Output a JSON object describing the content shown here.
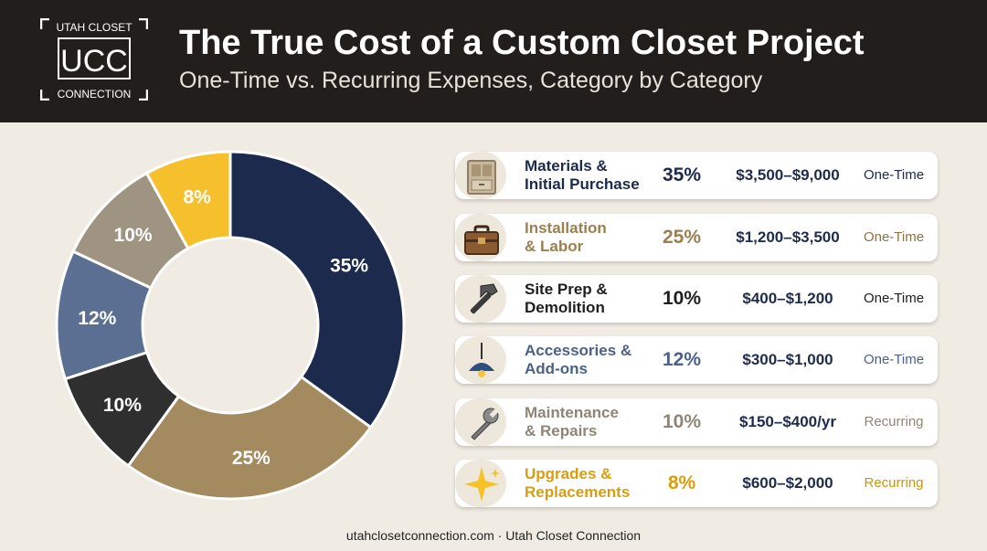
{
  "header": {
    "title": "The True Cost of a Custom Closet Project",
    "subtitle": "One-Time vs. Recurring Expenses, Category by Category"
  },
  "logo": {
    "top": "UTAH CLOSET",
    "mark": "UCC",
    "bottom": "CONNECTION"
  },
  "chart_data": {
    "type": "pie",
    "categories": [
      "Materials & Initial Purchase",
      "Installation & Labor",
      "Site Prep & Demolition",
      "Accessories & Add-ons",
      "Maintenance & Repairs",
      "Upgrades & Replacements"
    ],
    "values": [
      35,
      25,
      10,
      12,
      10,
      8
    ],
    "labels": [
      "35%",
      "25%",
      "10%",
      "12%",
      "10%",
      "8%"
    ],
    "colors": [
      "#1b2a4d",
      "#a48a5f",
      "#2f2f2f",
      "#5a6f91",
      "#9f9382",
      "#f6bf2c"
    ]
  },
  "rows": [
    {
      "line1": "Materials &",
      "line2": "Initial Purchase",
      "pct": "35%",
      "range": "$3,500–$9,000",
      "type": "One-Time",
      "label_color": "#1b2a4d",
      "pct_color": "#1b2a4d",
      "type_color": "#1b2a4d",
      "icon": "cabinet-icon"
    },
    {
      "line1": "Installation",
      "line2": "& Labor",
      "pct": "25%",
      "range": "$1,200–$3,500",
      "type": "One-Time",
      "label_color": "#9a7f50",
      "pct_color": "#9a7f50",
      "type_color": "#8a7248",
      "icon": "toolbox-icon"
    },
    {
      "line1": "Site Prep &",
      "line2": "Demolition",
      "pct": "10%",
      "range": "$400–$1,200",
      "type": "One-Time",
      "label_color": "#1e1e1e",
      "pct_color": "#1e1e1e",
      "type_color": "#1e1e1e",
      "icon": "hammer-icon"
    },
    {
      "line1": "Accessories &",
      "line2": "Add-ons",
      "pct": "12%",
      "range": "$300–$1,000",
      "type": "One-Time",
      "label_color": "#4a6188",
      "pct_color": "#4a6188",
      "type_color": "#4a6188",
      "icon": "lamp-icon"
    },
    {
      "line1": "Maintenance",
      "line2": "& Repairs",
      "pct": "10%",
      "range": "$150–$400/yr",
      "type": "Recurring",
      "label_color": "#8f8577",
      "pct_color": "#8f8577",
      "type_color": "#8f8577",
      "icon": "wrench-icon"
    },
    {
      "line1": "Upgrades &",
      "line2": "Replacements",
      "pct": "8%",
      "range": "$600–$2,000",
      "type": "Recurring",
      "label_color": "#d89e0c",
      "pct_color": "#d89e0c",
      "type_color": "#c9950f",
      "icon": "sparkle-icon"
    }
  ],
  "footer": "utahclosetconnection.com · Utah Closet Connection"
}
